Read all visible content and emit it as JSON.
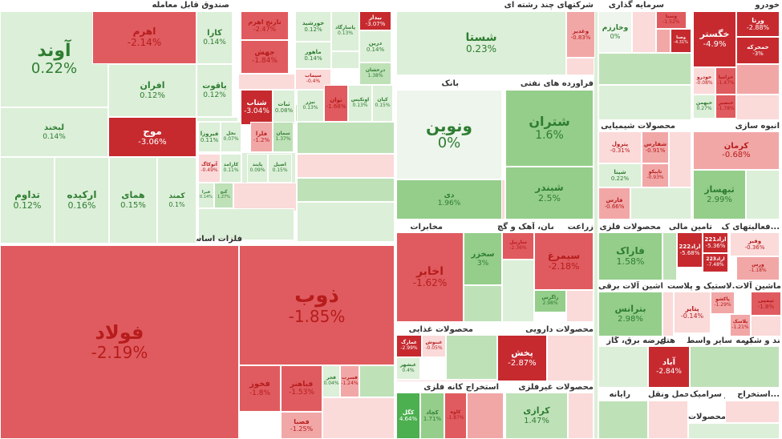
{
  "chart_data": {
    "type": "treemap",
    "title": "",
    "value_unit": "%",
    "colors": {
      "deep_red": "#c62a2f",
      "red": "#e05b5f",
      "light_red": "#f2a7a7",
      "pale_red": "#fbdada",
      "neutral": "#eef5ec",
      "pale_green": "#dcefd8",
      "light_green": "#bfe1b8",
      "green": "#95ce8b",
      "deep_green": "#4caf50",
      "text_green": "#2e7d32",
      "text_red": "#b71c1c"
    },
    "sectors": [
      {
        "name": "صندوق قابل معامله",
        "stocks": [
          {
            "name": "آوند",
            "change": "0.22%",
            "value": 0.22
          },
          {
            "name": "اهرم",
            "change": "-2.14%",
            "value": -2.14
          },
          {
            "name": "افران",
            "change": "0.12%",
            "value": 0.12
          },
          {
            "name": "کارا",
            "change": "0.14%",
            "value": 0.14
          },
          {
            "name": "یاقوت",
            "change": "0.12%",
            "value": 0.12
          },
          {
            "name": "لبخند",
            "change": "0.14%",
            "value": 0.14
          },
          {
            "name": "موج",
            "change": "-3.06%",
            "value": -3.06
          },
          {
            "name": "تداوم",
            "change": "0.12%",
            "value": 0.12
          },
          {
            "name": "ارکیده",
            "change": "0.16%",
            "value": 0.16
          },
          {
            "name": "همای",
            "change": "0.15%",
            "value": 0.15
          },
          {
            "name": "کمند",
            "change": "0.1%",
            "value": 0.1
          },
          {
            "name": "نارنج اهرم",
            "change": "-2.47%",
            "value": -2.47
          },
          {
            "name": "جهش",
            "change": "-1.84%",
            "value": -1.84
          },
          {
            "name": "شتاب",
            "change": "-3.04%",
            "value": -3.04
          },
          {
            "name": "ثبات",
            "change": "0.08%",
            "value": 0.08
          },
          {
            "name": "خورشید",
            "change": "0.12%",
            "value": 0.12
          },
          {
            "name": "ماهور",
            "change": "0.14%",
            "value": 0.14
          },
          {
            "name": "پاسارگاد",
            "change": "0.13%",
            "value": 0.13
          },
          {
            "name": "بیدار",
            "change": "-3.07%",
            "value": -3.07
          },
          {
            "name": "درین",
            "change": "0.14%",
            "value": 0.14
          },
          {
            "name": "سیماب",
            "change": "-0.4%",
            "value": -0.4
          },
          {
            "name": "درخشان",
            "change": "1.38%",
            "value": 1.38
          },
          {
            "name": "توان",
            "change": "-1.68%",
            "value": -1.68
          },
          {
            "name": "نیزر",
            "change": "0.13%",
            "value": 0.13
          },
          {
            "name": "اوتکیس",
            "change": "0.13%",
            "value": 0.13
          },
          {
            "name": "کیان",
            "change": "0.15%",
            "value": 0.15
          },
          {
            "name": "فیروزا",
            "change": "0.11%",
            "value": 0.11
          },
          {
            "name": "نخل",
            "change": "0.07%",
            "value": 0.07
          },
          {
            "name": "فلزا",
            "change": "-1.2%",
            "value": -1.2
          },
          {
            "name": "سمان",
            "change": "1.37%",
            "value": 1.37
          },
          {
            "name": "آتوکاگ",
            "change": "-0.49%",
            "value": -0.49
          },
          {
            "name": "کارامد",
            "change": "0.11%",
            "value": 0.11
          },
          {
            "name": "پایند",
            "change": "0.09%",
            "value": 0.09
          },
          {
            "name": "اصیل",
            "change": "0.15%",
            "value": 0.15
          },
          {
            "name": "فیرا",
            "change": "0.14%",
            "value": 0.14
          },
          {
            "name": "گنج",
            "change": "1.27%",
            "value": 1.27
          }
        ]
      },
      {
        "name": "فلزات اساسی",
        "stocks": [
          {
            "name": "فولاد",
            "change": "-2.19%",
            "value": -2.19
          },
          {
            "name": "ذوب",
            "change": "-1.85%",
            "value": -1.85
          },
          {
            "name": "فخوز",
            "change": "-1.8%",
            "value": -1.8
          },
          {
            "name": "فباهنر",
            "change": "-1.53%",
            "value": -1.53
          },
          {
            "name": "فصبا",
            "change": "-1.25%",
            "value": -1.25
          },
          {
            "name": "فجر",
            "change": "0.04%",
            "value": 0.04
          },
          {
            "name": "فسرب",
            "change": "-1.24%",
            "value": -1.24
          }
        ]
      },
      {
        "name": "شرکتهای چند رشته ای",
        "stocks": [
          {
            "name": "شستا",
            "change": "0.23%",
            "value": 0.23
          },
          {
            "name": "وغدیر",
            "change": "-0.83%",
            "value": -0.83
          }
        ]
      },
      {
        "name": "بانک",
        "stocks": [
          {
            "name": "ونوین",
            "change": "0%",
            "value": 0
          },
          {
            "name": "دی",
            "change": "1.96%",
            "value": 1.96
          }
        ]
      },
      {
        "name": "فراورده های نفتی",
        "stocks": [
          {
            "name": "شتران",
            "change": "1.6%",
            "value": 1.6
          },
          {
            "name": "شبندر",
            "change": "2.5%",
            "value": 2.5
          }
        ]
      },
      {
        "name": "سرمایه گذاری",
        "stocks": [
          {
            "name": "وخارزم",
            "change": "0%",
            "value": 0
          },
          {
            "name": "وسنا",
            "change": "-1.52%",
            "value": -1.52
          },
          {
            "name": "وصنا",
            "change": "-4.31%",
            "value": -4.31
          }
        ]
      },
      {
        "name": "خودرو",
        "stocks": [
          {
            "name": "خگستر",
            "change": "-4.9%",
            "value": -4.9
          },
          {
            "name": "ورنا",
            "change": "-2.88%",
            "value": -2.88
          },
          {
            "name": "خمحرکه",
            "change": "-3%",
            "value": -3
          },
          {
            "name": "خزامیا",
            "change": "-1.47%",
            "value": -1.47
          },
          {
            "name": "خودرو",
            "change": "-0.08%",
            "value": -0.08
          },
          {
            "name": "خنصیر",
            "change": "-1.78%",
            "value": -1.78
          },
          {
            "name": "خبهمن",
            "change": "0.27%",
            "value": 0.27
          }
        ]
      },
      {
        "name": "محصولات شیمیایی",
        "stocks": [
          {
            "name": "پترول",
            "change": "-0.31%",
            "value": -0.31
          },
          {
            "name": "شفارس",
            "change": "-0.91%",
            "value": -0.91
          },
          {
            "name": "شپنا",
            "change": "0.22%",
            "value": 0.22
          },
          {
            "name": "تاپیکو",
            "change": "-0.93%",
            "value": -0.93
          },
          {
            "name": "فارس",
            "change": "-0.66%",
            "value": -0.66
          }
        ]
      },
      {
        "name": "انبوه سازی",
        "stocks": [
          {
            "name": "کرمان",
            "change": "-0.68%",
            "value": -0.68
          },
          {
            "name": "ثبهساز",
            "change": "2.99%",
            "value": 2.99
          }
        ]
      },
      {
        "name": "مخابرات",
        "stocks": [
          {
            "name": "اخابر",
            "change": "-1.62%",
            "value": -1.62
          }
        ]
      },
      {
        "name": "سیمان، آهک و گچ",
        "stocks": [
          {
            "name": "سخزر",
            "change": "3%",
            "value": 3
          },
          {
            "name": "ساربیل",
            "change": "-2.36%",
            "value": -2.36
          },
          {
            "name": "سیمرغ",
            "change": "-2.18%",
            "value": -2.18
          },
          {
            "name": "زاگرس",
            "change": "2.98%",
            "value": 2.98
          }
        ]
      },
      {
        "name": "زراعت",
        "stocks": []
      },
      {
        "name": "محصولات فلزی",
        "stocks": [
          {
            "name": "فاراک",
            "change": "1.58%",
            "value": 1.58
          }
        ]
      },
      {
        "name": "تامین مالی",
        "stocks": [
          {
            "name": "اراد222",
            "change": "-5.68%",
            "value": -5.68
          },
          {
            "name": "اراد221",
            "change": "-5.36%",
            "value": -5.36
          },
          {
            "name": "اراد223",
            "change": "-7.48%",
            "value": -7.48
          }
        ]
      },
      {
        "name": "فعالیتهای ک...",
        "stocks": [
          {
            "name": "وفبر",
            "change": "-0.36%",
            "value": -0.36
          },
          {
            "name": "ورس",
            "change": "-1.18%",
            "value": -1.18
          }
        ]
      },
      {
        "name": "ماشین آلات برقی",
        "stocks": [
          {
            "name": "بترانس",
            "change": "2.98%",
            "value": 2.98
          }
        ]
      },
      {
        "name": "لاستیک و پلاست...",
        "stocks": [
          {
            "name": "پتایر",
            "change": "-0.14%",
            "value": -0.14
          },
          {
            "name": "پاکشو",
            "change": "-1.29%",
            "value": -1.29
          },
          {
            "name": "پلاسک",
            "change": "-1.21%",
            "value": -1.21
          }
        ]
      },
      {
        "name": "ماشین آلات",
        "stocks": [
          {
            "name": "تپمپی",
            "change": "-1.8%",
            "value": -1.8
          }
        ]
      },
      {
        "name": "محصولات غذایی",
        "stocks": [
          {
            "name": "غمارگ",
            "change": "-2.99%",
            "value": -2.99
          },
          {
            "name": "غبنوش",
            "change": "-0.05%",
            "value": -0.05
          },
          {
            "name": "غبشهر",
            "change": "0.4%",
            "value": 0.4
          }
        ]
      },
      {
        "name": "محصولات دارویی",
        "stocks": [
          {
            "name": "پخش",
            "change": "-2.87%",
            "value": -2.87
          }
        ]
      },
      {
        "name": "عرضه برق، گاز",
        "stocks": [
          {
            "name": "آباد",
            "change": "-2.84%",
            "value": -2.84
          }
        ]
      },
      {
        "name": "هتل",
        "stocks": []
      },
      {
        "name": "سایر واسط...",
        "stocks": []
      },
      {
        "name": "بیمه",
        "stocks": []
      },
      {
        "name": "استخراج کانه فلزی",
        "stocks": [
          {
            "name": "کگل",
            "change": "4.64%",
            "value": 4.64
          },
          {
            "name": "کچاد",
            "change": "1.71%",
            "value": 1.71
          },
          {
            "name": "کاوه",
            "change": "-1.87%",
            "value": -1.87
          }
        ]
      },
      {
        "name": "محصولات غیرفلزی",
        "stocks": [
          {
            "name": "کرازی",
            "change": "1.47%",
            "value": 1.47
          }
        ]
      },
      {
        "name": "رایانه",
        "stocks": []
      },
      {
        "name": "حمل ونقل",
        "stocks": []
      },
      {
        "name": "قند و شکر",
        "stocks": []
      },
      {
        "name": "کاشی و سرامیک",
        "stocks": []
      },
      {
        "name": "استخراج...",
        "stocks": []
      },
      {
        "name": "محصولات...",
        "stocks": []
      }
    ]
  }
}
